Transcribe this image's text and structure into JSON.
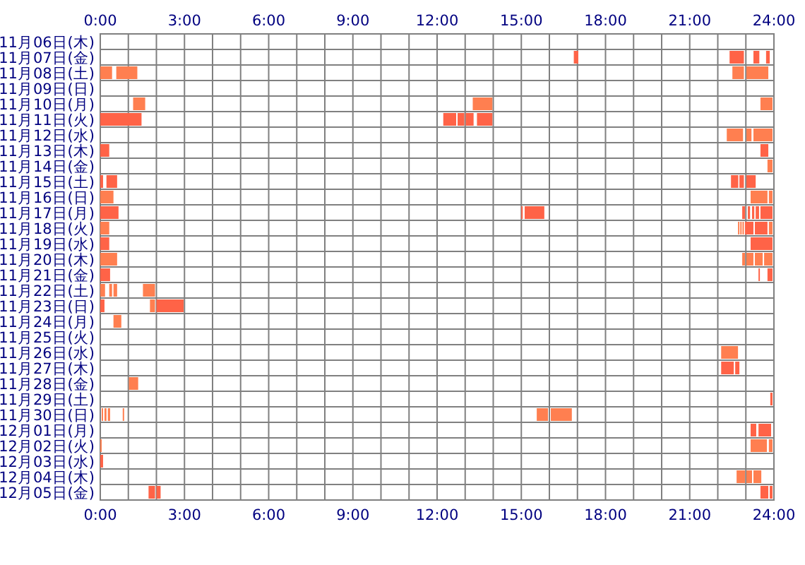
{
  "chart_data": {
    "type": "bar",
    "orientation": "horizontal",
    "grid": true,
    "categories": [
      "11月06日(木)",
      "11月07日(金)",
      "11月08日(土)",
      "11月09日(日)",
      "11月10日(月)",
      "11月11日(火)",
      "11月12日(水)",
      "11月13日(木)",
      "11月14日(金)",
      "11月15日(土)",
      "11月16日(日)",
      "11月17日(月)",
      "11月18日(火)",
      "11月19日(水)",
      "11月20日(木)",
      "11月21日(金)",
      "11月22日(土)",
      "11月23日(日)",
      "11月24日(月)",
      "11月25日(火)",
      "11月26日(水)",
      "11月27日(木)",
      "11月28日(金)",
      "11月29日(土)",
      "11月30日(日)",
      "12月01日(月)",
      "12月02日(火)",
      "12月03日(水)",
      "12月04日(木)",
      "12月05日(金)"
    ],
    "xlim": [
      0,
      24
    ],
    "xticks": [
      {
        "value": 0,
        "label": "0:00"
      },
      {
        "value": 1,
        "label": null
      },
      {
        "value": 2,
        "label": null
      },
      {
        "value": 3,
        "label": "3:00"
      },
      {
        "value": 4,
        "label": null
      },
      {
        "value": 5,
        "label": null
      },
      {
        "value": 6,
        "label": "6:00"
      },
      {
        "value": 7,
        "label": null
      },
      {
        "value": 8,
        "label": null
      },
      {
        "value": 9,
        "label": "9:00"
      },
      {
        "value": 10,
        "label": null
      },
      {
        "value": 11,
        "label": null
      },
      {
        "value": 12,
        "label": "12:00"
      },
      {
        "value": 13,
        "label": null
      },
      {
        "value": 14,
        "label": null
      },
      {
        "value": 15,
        "label": "15:00"
      },
      {
        "value": 16,
        "label": null
      },
      {
        "value": 17,
        "label": null
      },
      {
        "value": 18,
        "label": "18:00"
      },
      {
        "value": 19,
        "label": null
      },
      {
        "value": 20,
        "label": null
      },
      {
        "value": 21,
        "label": "21:00"
      },
      {
        "value": 22,
        "label": null
      },
      {
        "value": 23,
        "label": null
      },
      {
        "value": 24,
        "label": "24:00"
      }
    ],
    "x2lim": [
      0,
      24
    ],
    "x2ticks": [
      {
        "value": 0,
        "label": "0:00"
      },
      {
        "value": 3,
        "label": "3:00"
      },
      {
        "value": 6,
        "label": "6:00"
      },
      {
        "value": 9,
        "label": "9:00"
      },
      {
        "value": 12,
        "label": "12:00"
      },
      {
        "value": 15,
        "label": "15:00"
      },
      {
        "value": 18,
        "label": "18:00"
      },
      {
        "value": 21,
        "label": "21:00"
      },
      {
        "value": 24,
        "label": "24:00"
      }
    ],
    "series": [
      {
        "base": [
          null,
          16.87,
          0,
          null,
          1.17,
          0,
          22.32,
          0,
          23.77,
          0,
          0,
          0,
          0,
          0,
          0,
          0,
          0,
          0,
          0.47,
          null,
          22.12,
          22.12,
          1.02,
          23.87,
          0.05,
          23.17,
          0,
          0,
          22.67,
          1.72
        ],
        "values": [
          null,
          0.16,
          0.42,
          null,
          0.43,
          1.47,
          0.58,
          0.32,
          0.18,
          0.1,
          0.47,
          0.65,
          0.32,
          0.32,
          0.6,
          0.35,
          0.17,
          0.15,
          0.28,
          null,
          0.6,
          0.45,
          0.33,
          0.08,
          0.05,
          0.2,
          0.05,
          0.1,
          0.3,
          0.23
        ],
        "colors": [
          null,
          "#ff6347",
          "#ff7f50",
          null,
          "#ff7f50",
          "#ff6347",
          "#ff7f50",
          "#ff6347",
          "#ff7f50",
          "#ff6347",
          "#ff7f50",
          "#ff6347",
          "#ff7f50",
          "#ff6347",
          "#ff7f50",
          "#ff6347",
          "#ff7f50",
          "#ff6347",
          "#ff7f50",
          null,
          "#ff7f50",
          "#ff6347",
          "#ff7f50",
          "#ff6347",
          "#ff7f50",
          "#ff6347",
          "#ff7f50",
          "#ff6347",
          "#ff7f50",
          "#ff6347"
        ]
      },
      {
        "base": [
          null,
          22.42,
          0.57,
          null,
          13.27,
          12.22,
          23.02,
          23.52,
          null,
          0.22,
          23.17,
          15.0,
          22.72,
          23.17,
          22.87,
          23.45,
          0.32,
          1.77,
          null,
          null,
          null,
          22.62,
          null,
          null,
          0.15,
          23.45,
          23.17,
          null,
          23.02,
          2
        ],
        "values": [
          null,
          0.51,
          0.75,
          null,
          0.7,
          0.46,
          0.18,
          0.28,
          null,
          0.38,
          0.6,
          0.05,
          0.05,
          0.78,
          0.1,
          0.05,
          0.1,
          0.18,
          null,
          null,
          null,
          0.15,
          null,
          null,
          0.07,
          0.45,
          0.58,
          null,
          0.2,
          0.15
        ],
        "colors": [
          null,
          "#ff6347",
          "#ff7f50",
          null,
          "#ff7f50",
          "#ff6347",
          "#ff7f50",
          "#ff6347",
          null,
          "#ff6347",
          "#ff7f50",
          "#ff6347",
          "#ff7f50",
          "#ff6347",
          "#ff7f50",
          "#ff6347",
          "#ff7f50",
          "#ff7f50",
          null,
          null,
          null,
          "#ff6347",
          null,
          null,
          "#ff7f50",
          "#ff6347",
          "#ff7f50",
          null,
          "#ff7f50",
          "#ff6347"
        ]
      },
      {
        "base": [
          null,
          23.27,
          22.52,
          null,
          23.52,
          12.73,
          23.27,
          null,
          null,
          22.47,
          23.82,
          15.12,
          22.8,
          null,
          23.02,
          23.77,
          0.47,
          2,
          null,
          null,
          null,
          null,
          null,
          null,
          0.27,
          null,
          23.82,
          null,
          23.27,
          23.52
        ],
        "values": [
          null,
          0.21,
          0.41,
          null,
          0.43,
          0.24,
          0.68,
          null,
          null,
          0.26,
          0.13,
          0.7,
          0.05,
          null,
          0.25,
          0.18,
          0.13,
          0.97,
          null,
          null,
          null,
          null,
          null,
          null,
          0.08,
          null,
          0.13,
          null,
          0.28,
          0.28
        ],
        "colors": [
          null,
          "#ff6347",
          "#ff7f50",
          null,
          "#ff7f50",
          "#ff6347",
          "#ff7f50",
          null,
          null,
          "#ff6347",
          "#ff7f50",
          "#ff6347",
          "#ff7f50",
          null,
          "#ff7f50",
          "#ff6347",
          "#ff7f50",
          "#ff6347",
          null,
          null,
          null,
          null,
          null,
          null,
          "#ff7f50",
          null,
          "#ff7f50",
          null,
          "#ff7f50",
          "#ff6347"
        ]
      },
      {
        "base": [
          null,
          23.72,
          23.02,
          null,
          null,
          13.02,
          null,
          null,
          null,
          22.77,
          null,
          22.87,
          22.88,
          null,
          23.32,
          null,
          1.52,
          null,
          null,
          null,
          null,
          null,
          null,
          null,
          0.8,
          null,
          null,
          null,
          null,
          23.85
        ],
        "values": [
          null,
          0.13,
          0.78,
          null,
          null,
          0.28,
          null,
          null,
          null,
          0.16,
          null,
          0.1,
          0.05,
          null,
          0.28,
          null,
          0.43,
          null,
          null,
          null,
          null,
          null,
          null,
          null,
          0.05,
          null,
          null,
          null,
          null,
          0.1
        ],
        "colors": [
          null,
          "#ff6347",
          "#ff7f50",
          null,
          null,
          "#ff6347",
          null,
          null,
          null,
          "#ff6347",
          null,
          "#ff6347",
          "#ff7f50",
          null,
          "#ff7f50",
          null,
          "#ff7f50",
          null,
          null,
          null,
          null,
          null,
          null,
          null,
          "#ff7f50",
          null,
          null,
          null,
          null,
          "#ff6347"
        ]
      },
      {
        "base": [
          null,
          null,
          null,
          null,
          null,
          13.42,
          null,
          null,
          null,
          23.02,
          null,
          23.07,
          22.97,
          null,
          23.65,
          null,
          null,
          null,
          null,
          null,
          null,
          null,
          null,
          null,
          15.55,
          null,
          null,
          null,
          null,
          null
        ],
        "values": [
          null,
          null,
          null,
          null,
          null,
          0.55,
          null,
          null,
          null,
          0.33,
          null,
          0.08,
          0.3,
          null,
          0.3,
          null,
          null,
          null,
          null,
          null,
          null,
          null,
          null,
          null,
          0.4,
          null,
          null,
          null,
          null,
          null
        ],
        "colors": [
          null,
          null,
          null,
          null,
          null,
          "#ff6347",
          null,
          null,
          null,
          "#ff6347",
          null,
          "#ff6347",
          "#ff6347",
          null,
          "#ff7f50",
          null,
          null,
          null,
          null,
          null,
          null,
          null,
          null,
          null,
          "#ff7f50",
          null,
          null,
          null,
          null,
          null
        ]
      },
      {
        "base": [
          null,
          null,
          null,
          null,
          null,
          null,
          null,
          null,
          null,
          null,
          null,
          23.22,
          23.32,
          null,
          null,
          null,
          null,
          null,
          null,
          null,
          null,
          null,
          null,
          null,
          16.05,
          null,
          null,
          null,
          null,
          null
        ],
        "values": [
          null,
          null,
          null,
          null,
          null,
          null,
          null,
          null,
          null,
          null,
          null,
          0.08,
          0.45,
          null,
          null,
          null,
          null,
          null,
          null,
          null,
          null,
          null,
          null,
          null,
          0.75,
          null,
          null,
          null,
          null,
          null
        ],
        "colors": [
          null,
          null,
          null,
          null,
          null,
          null,
          null,
          null,
          null,
          null,
          null,
          "#ff6347",
          "#ff6347",
          null,
          null,
          null,
          null,
          null,
          null,
          null,
          null,
          null,
          null,
          null,
          "#ff7f50",
          null,
          null,
          null,
          null,
          null
        ]
      },
      {
        "base": [
          null,
          null,
          null,
          null,
          null,
          null,
          null,
          null,
          null,
          null,
          null,
          23.35,
          23.82,
          null,
          null,
          null,
          null,
          null,
          null,
          null,
          null,
          null,
          null,
          null,
          null,
          null,
          null,
          null,
          null,
          null
        ],
        "values": [
          null,
          null,
          null,
          null,
          null,
          null,
          null,
          null,
          null,
          null,
          null,
          0.12,
          0.13,
          null,
          null,
          null,
          null,
          null,
          null,
          null,
          null,
          null,
          null,
          null,
          null,
          null,
          null,
          null,
          null,
          null
        ],
        "colors": [
          null,
          null,
          null,
          null,
          null,
          null,
          null,
          null,
          null,
          null,
          null,
          "#ff6347",
          "#ff7f50",
          null,
          null,
          null,
          null,
          null,
          null,
          null,
          null,
          null,
          null,
          null,
          null,
          null,
          null,
          null,
          null,
          null
        ]
      },
      {
        "base": [
          null,
          null,
          null,
          null,
          null,
          null,
          null,
          null,
          null,
          null,
          null,
          23.52,
          null,
          null,
          null,
          null,
          null,
          null,
          null,
          null,
          null,
          null,
          null,
          null,
          null,
          null,
          null,
          null,
          null,
          null
        ],
        "values": [
          null,
          null,
          null,
          null,
          null,
          null,
          null,
          null,
          null,
          null,
          null,
          0.43,
          null,
          null,
          null,
          null,
          null,
          null,
          null,
          null,
          null,
          null,
          null,
          null,
          null,
          null,
          null,
          null,
          null,
          null
        ],
        "colors": [
          null,
          null,
          null,
          null,
          null,
          null,
          null,
          null,
          null,
          null,
          null,
          "#ff6347",
          null,
          null,
          null,
          null,
          null,
          null,
          null,
          null,
          null,
          null,
          null,
          null,
          null,
          null,
          null,
          null,
          null,
          null
        ]
      }
    ]
  }
}
